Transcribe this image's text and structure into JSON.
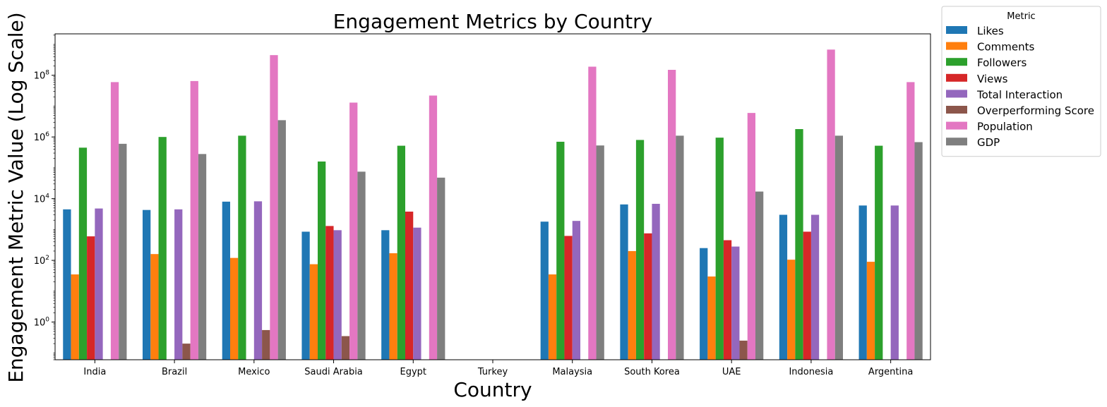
{
  "chart_data": {
    "type": "bar",
    "title": "Engagement Metrics by Country",
    "xlabel": "Country",
    "ylabel": "Engagement Metric Value (Log Scale)",
    "yscale": "log",
    "ylim": [
      0.06,
      2200000000
    ],
    "yticks": [
      {
        "value": 1,
        "base": "10",
        "exp": "0"
      },
      {
        "value": 100,
        "base": "10",
        "exp": "2"
      },
      {
        "value": 10000,
        "base": "10",
        "exp": "4"
      },
      {
        "value": 1000000,
        "base": "10",
        "exp": "6"
      },
      {
        "value": 100000000,
        "base": "10",
        "exp": "8"
      }
    ],
    "grid": false,
    "legend": {
      "title": "Metric",
      "position": "outside-top-right"
    },
    "categories": [
      "India",
      "Brazil",
      "Mexico",
      "Saudi Arabia",
      "Egypt",
      "Turkey",
      "Malaysia",
      "South Korea",
      "UAE",
      "Indonesia",
      "Argentina"
    ],
    "series": [
      {
        "name": "Likes",
        "color": "#1f77b4",
        "values": [
          4500,
          4300,
          8000,
          850,
          950,
          null,
          1800,
          6500,
          250,
          3000,
          6000
        ]
      },
      {
        "name": "Comments",
        "color": "#ff7f0e",
        "values": [
          35,
          160,
          120,
          75,
          170,
          null,
          35,
          200,
          30,
          105,
          90
        ]
      },
      {
        "name": "Followers",
        "color": "#2ca02c",
        "values": [
          450000,
          1000000,
          1100000,
          160000,
          520000,
          null,
          700000,
          800000,
          950000,
          1800000,
          520000
        ]
      },
      {
        "name": "Views",
        "color": "#d62728",
        "values": [
          600,
          null,
          null,
          1300,
          3800,
          null,
          620,
          750,
          450,
          850,
          null
        ]
      },
      {
        "name": "Total Interaction",
        "color": "#9467bd",
        "values": [
          4800,
          4500,
          8200,
          950,
          1150,
          null,
          1900,
          6800,
          280,
          3000,
          6000
        ]
      },
      {
        "name": "Overperforming Score",
        "color": "#8c564b",
        "values": [
          null,
          0.2,
          0.55,
          0.35,
          null,
          null,
          null,
          null,
          0.25,
          null,
          null
        ]
      },
      {
        "name": "Population",
        "color": "#e377c2",
        "values": [
          60000000,
          65000000,
          450000000,
          13000000,
          22000000,
          null,
          190000000,
          150000000,
          6000000,
          680000000,
          60000000
        ]
      },
      {
        "name": "GDP",
        "color": "#7f7f7f",
        "values": [
          600000,
          280000,
          3500000,
          75000,
          48000,
          null,
          530000,
          1100000,
          17000,
          1100000,
          680000
        ]
      }
    ]
  }
}
